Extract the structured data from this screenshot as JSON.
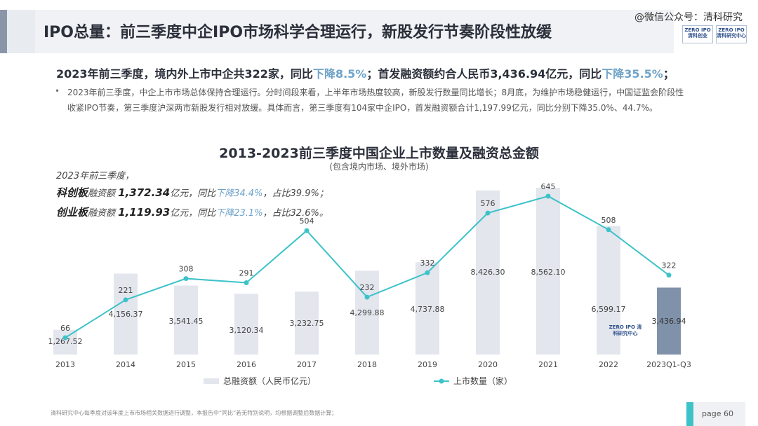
{
  "header": {
    "title": "IPO总量：前三季度中企IPO市场科学合理运行，新股发行节奏阶段性放缓",
    "watermark": "@微信公众号：清科研究",
    "logo1": "ZERO IPO 清科创业",
    "logo2": "ZERO IPO 清科研究中心"
  },
  "headline": {
    "part1": "2023年前三季度，境内外上市中企共322家，同比",
    "dec1": "下降8.5%",
    "part2": "；首发融资额约合人民币3,436.94亿元，同比",
    "dec2": "下降35.5%",
    "part3": "；"
  },
  "bullet": "2023年前三季度，中企上市市场总体保持合理运行。分时间段来看，上半年市场热度较高，新股发行数量同比增长；8月底，为维护市场稳健运行，中国证监会阶段性收紧IPO节奏，第三季度沪深两市新股发行相对放缓。具体而言，第三季度有104家中企IPO，首发融资额合计1,197.99亿元，同比分别下降35.0%、44.7%。",
  "notes": {
    "line1": "2023年前三季度，",
    "kcb_name": "科创板",
    "kcb_mid": "融资额",
    "kcb_amount": "1,372.34",
    "kcb_unit": "亿元，同比",
    "kcb_dec": "下降34.4%",
    "kcb_share": "，占比39.9%；",
    "cyb_name": "创业板",
    "cyb_mid": "融资额",
    "cyb_amount": "1,119.93",
    "cyb_unit": "亿元，同比",
    "cyb_dec": "下降23.1%",
    "cyb_share": "，占比32.6%。"
  },
  "chart_data": {
    "type": "bar",
    "title": "2013-2023前三季度中国企业上市数量及融资总金额",
    "subtitle": "(包含境内市场、境外市场)",
    "categories": [
      "2013",
      "2014",
      "2015",
      "2016",
      "2017",
      "2018",
      "2019",
      "2020",
      "2021",
      "2022",
      "2023Q1-Q3"
    ],
    "series": [
      {
        "name": "总融资额（人民币亿元）",
        "type": "bar",
        "values": [
          1267.52,
          4156.37,
          3541.45,
          3120.34,
          3232.75,
          4299.88,
          4737.88,
          8426.3,
          8562.1,
          6599.17,
          3436.94
        ],
        "labels": [
          "1,267.52",
          "4,156.37",
          "3,541.45",
          "3,120.34",
          "3,232.75",
          "4,299.88",
          "4,737.88",
          "8,426.30",
          "8,562.10",
          "6,599.17",
          "3,436.94"
        ]
      },
      {
        "name": "上市数量（家）",
        "type": "line",
        "values": [
          66,
          221,
          308,
          291,
          504,
          232,
          332,
          576,
          645,
          508,
          322
        ]
      }
    ],
    "colors": {
      "bar": "#e3e6ed",
      "bar_highlight": "#7f92aa",
      "line": "#3cc3c9"
    },
    "bar_ylim": [
      0,
      10000
    ],
    "line_ylim": [
      0,
      800
    ],
    "legend_position": "bottom",
    "watermark_logo": "ZERO IPO 清科研究中心"
  },
  "footer": {
    "note": "清科研究中心每季度对该年度上市市场相关数据进行调整，本报告中“同比”若无特别说明，均根据调整后数据计算；",
    "page": "page  60"
  }
}
